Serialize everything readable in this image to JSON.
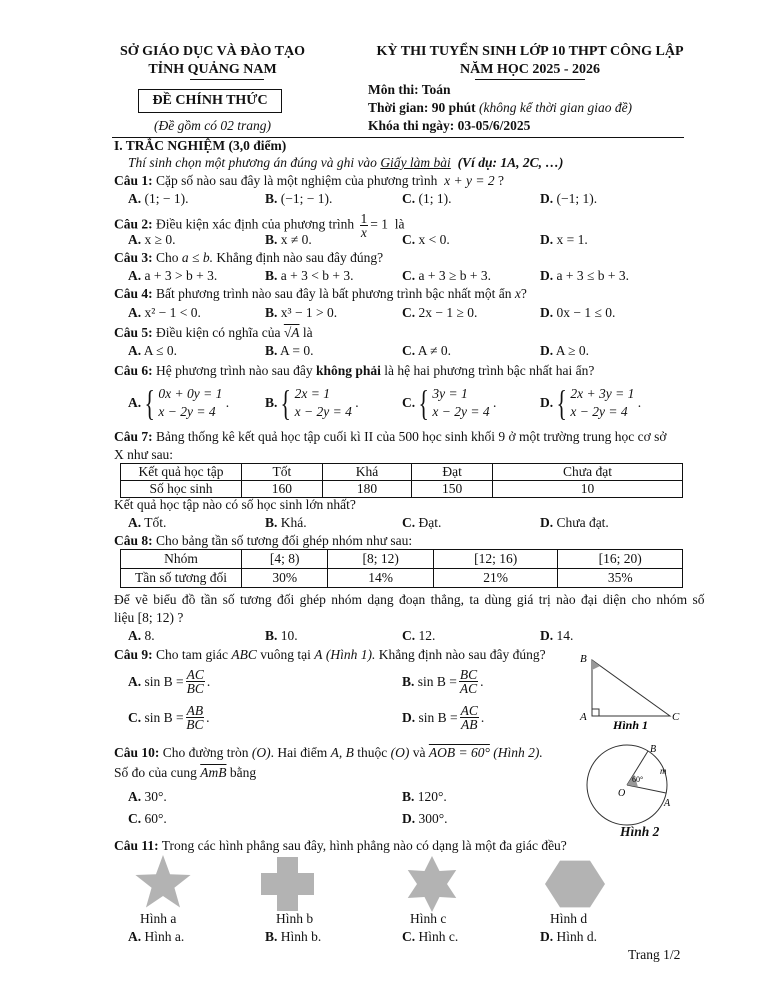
{
  "header": {
    "left_line1": "SỞ GIÁO DỤC VÀ ĐÀO TẠO",
    "left_line2": "TỈNH QUẢNG NAM",
    "official_box": "ĐỀ CHÍNH THỨC",
    "pages_note": "(Đề gồm có 02 trang)",
    "right_line1": "KỲ THI TUYỂN SINH LỚP 10 THPT CÔNG LẬP",
    "right_line2": "NĂM HỌC 2025 - 2026",
    "subject": "Môn thi: Toán",
    "time_label": "Thời gian: 90 phút",
    "time_note": "(không kể thời gian giao đề)",
    "exam_date": "Khóa thi ngày: 03-05/6/2025"
  },
  "section": {
    "title": "I. TRẮC NGHIỆM (3,0 điểm)",
    "instruction": "Thí sinh chọn một phương án đúng và ghi vào",
    "instruction_link": "Giấy làm bài",
    "instruction_example": "(Ví dụ: 1A, 2C, …)"
  },
  "questions": [
    {
      "label": "Câu 1:",
      "text": "Cặp số nào sau đây là một nghiệm của phương trình",
      "math": "x + y = 2",
      "end": "?",
      "options": [
        "A.",
        "(1; − 1).",
        "B.",
        "(−1; − 1).",
        "C.",
        "(1; 1).",
        "D.",
        "(−1; 1)."
      ]
    },
    {
      "label": "Câu 2:",
      "text": "Điều kiện xác định của phương trình",
      "num": "1",
      "den": "x",
      "math": "= 1",
      "end": "là",
      "options": [
        "A.",
        "x ≥ 0.",
        "B.",
        "x ≠ 0.",
        "C.",
        "x < 0.",
        "D.",
        "x = 1."
      ]
    },
    {
      "label": "Câu 3:",
      "text": "Cho",
      "math": "a ≤ b.",
      "end": "Khẳng định nào sau đây đúng?",
      "options": [
        "A.",
        "a + 3 > b + 3.",
        "B.",
        "a + 3 < b + 3.",
        "C.",
        "a + 3 ≥ b + 3.",
        "D.",
        "a + 3 ≤ b + 3."
      ]
    },
    {
      "label": "Câu 4:",
      "text": "Bất phương trình nào sau đây là bất phương trình bậc nhất một ẩn",
      "math": "x",
      "end": "?",
      "options": [
        "A.",
        "x² − 1 < 0.",
        "B.",
        "x³ − 1 > 0.",
        "C.",
        "2x − 1 ≥ 0.",
        "D.",
        "0x − 1 ≤ 0."
      ]
    },
    {
      "label": "Câu 5:",
      "text": "Điều kiện có nghĩa của",
      "math": "√A",
      "end": "là",
      "options": [
        "A.",
        "A ≤ 0.",
        "B.",
        "A = 0.",
        "C.",
        "A ≠ 0.",
        "D.",
        "A ≥ 0."
      ]
    },
    {
      "label": "Câu 6:",
      "text": "Hệ phương trình nào sau đây",
      "bold": "không phải",
      "end": "là hệ hai phương trình bậc nhất hai ẩn?",
      "options": [
        {
          "letter": "A.",
          "r1": "0x + 0y = 1",
          "r2": "x − 2y = 4"
        },
        {
          "letter": "B.",
          "r1": "2x = 1",
          "r2": "x − 2y = 4"
        },
        {
          "letter": "C.",
          "r1": "3y = 1",
          "r2": "x − 2y = 4"
        },
        {
          "letter": "D.",
          "r1": "2x + 3y = 1",
          "r2": "x − 2y = 4"
        }
      ]
    },
    {
      "label": "Câu 7:",
      "text": "Bảng thống kê kết quả học tập cuối kì II của 500 học sinh khối 9 ở một trường trung học cơ sở",
      "text2": "X như sau:",
      "table": [
        [
          "Kết quả học tập",
          "Tốt",
          "Khá",
          "Đạt",
          "Chưa đạt"
        ],
        [
          "Số học sinh",
          "160",
          "180",
          "150",
          "10"
        ]
      ],
      "after": "Kết quả học tập nào có số học sinh lớn nhất?",
      "options": [
        "A.",
        "Tốt.",
        "B.",
        "Khá.",
        "C.",
        "Đạt.",
        "D.",
        "Chưa đạt."
      ]
    },
    {
      "label": "Câu 8:",
      "text": "Cho bảng tần số tương đối ghép nhóm như sau:",
      "table": [
        [
          "Nhóm",
          "[4; 8)",
          "[8; 12)",
          "[12; 16)",
          "[16; 20)"
        ],
        [
          "Tần số tương đối",
          "30%",
          "14%",
          "21%",
          "35%"
        ]
      ],
      "after": "Để vẽ biểu đồ tần số tương đối ghép nhóm dạng đoạn thẳng, ta dùng giá trị nào đại diện cho nhóm số",
      "after2": "liệu [8; 12) ?",
      "options": [
        "A.",
        "8.",
        "B.",
        "10.",
        "C.",
        "12.",
        "D.",
        "14."
      ]
    },
    {
      "label": "Câu 9:",
      "text": "Cho tam giác",
      "math": "ABC",
      "text2": "vuông tại",
      "math2": "A",
      "fig": "(Hình 1).",
      "end": "Khẳng định nào sau đây đúng?",
      "options": [
        {
          "letter": "A.",
          "pre": "sin B =",
          "num": "AC",
          "den": "BC"
        },
        {
          "letter": "B.",
          "pre": "sin B =",
          "num": "BC",
          "den": "AC"
        },
        {
          "letter": "C.",
          "pre": "sin B =",
          "num": "AB",
          "den": "BC"
        },
        {
          "letter": "D.",
          "pre": "sin B =",
          "num": "AC",
          "den": "AB"
        }
      ],
      "figure": {
        "caption": "Hình 1",
        "B": "B",
        "A": "A",
        "C": "C"
      }
    },
    {
      "label": "Câu 10:",
      "text": "Cho đường tròn",
      "math": "(O)",
      "text2": ". Hai điểm",
      "math2": "A, B",
      "text3": "thuộc",
      "math3": "(O)",
      "text4": "và",
      "math4": "AOB = 60°",
      "fig": "(Hình 2).",
      "line2": "Số đo của cung",
      "arc": "AmB",
      "line2_end": "bằng",
      "options": [
        "A.",
        "30°.",
        "B.",
        "120°.",
        "C.",
        "60°.",
        "D.",
        "300°."
      ],
      "figure": {
        "caption": "Hình 2",
        "O": "O",
        "A": "A",
        "B": "B",
        "m": "m",
        "angle": "60°"
      }
    },
    {
      "label": "Câu 11:",
      "text": "Trong các hình phẳng sau đây, hình phẳng nào có dạng là một đa giác đều?",
      "shapes": [
        "Hình a",
        "Hình b",
        "Hình c",
        "Hình d"
      ],
      "shape_color": "#b3b3b3",
      "options": [
        "A.",
        "Hình a.",
        "B.",
        "Hình b.",
        "C.",
        "Hình c.",
        "D.",
        "Hình d."
      ]
    }
  ],
  "footer": {
    "page": "Trang 1/2"
  }
}
